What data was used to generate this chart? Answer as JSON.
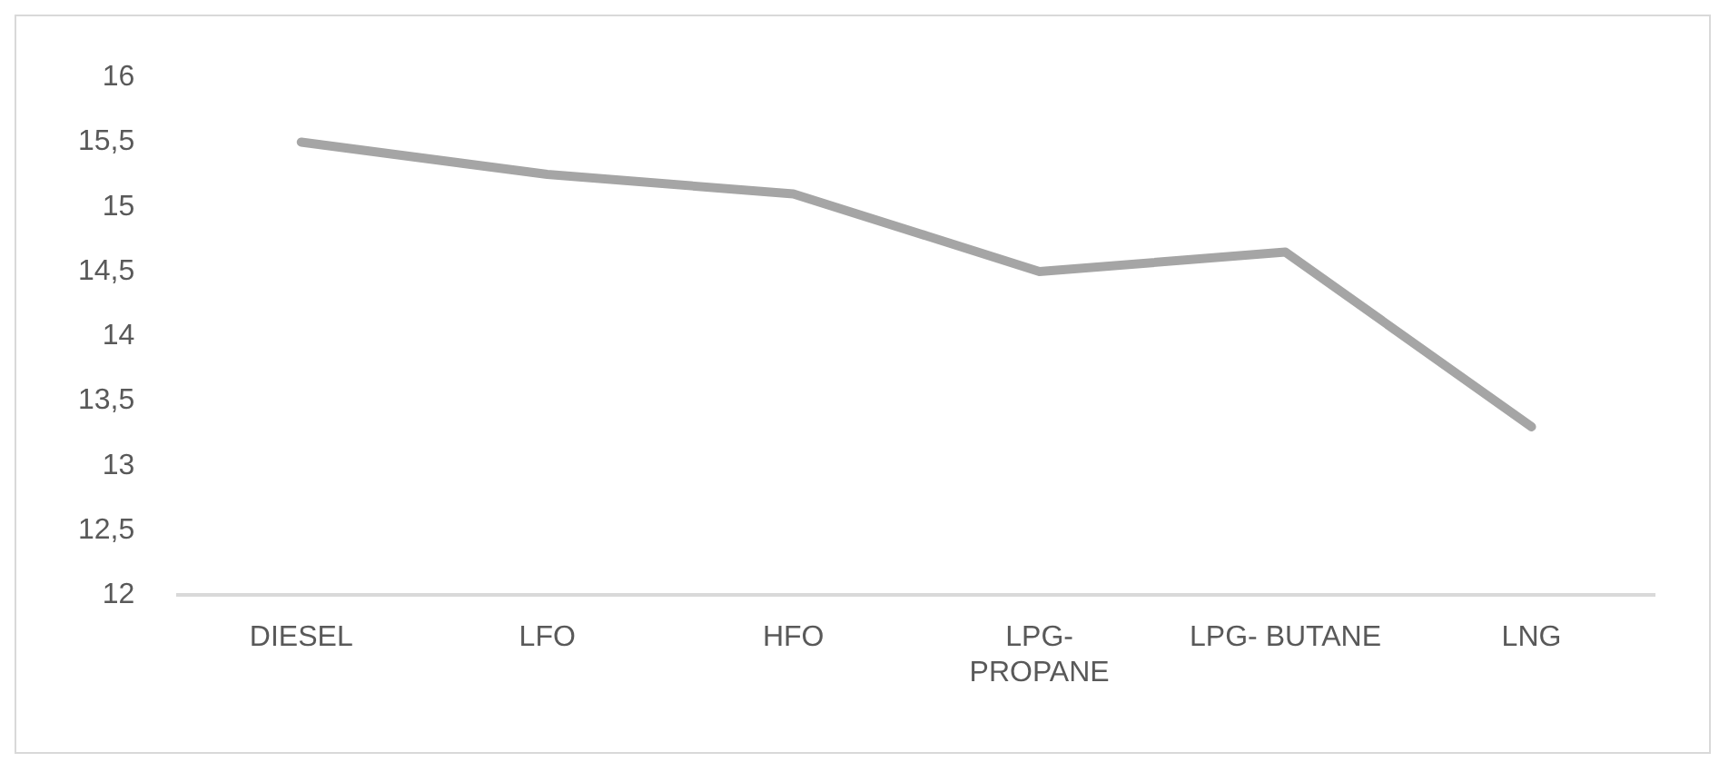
{
  "chart_data": {
    "type": "line",
    "categories": [
      "DIESEL",
      "LFO",
      "HFO",
      "LPG-PROPANE",
      "LPG- BUTANE",
      "LNG"
    ],
    "series": [
      {
        "color": "#a5a5a5",
        "values": [
          15.5,
          15.25,
          15.1,
          14.5,
          14.65,
          13.3
        ]
      }
    ],
    "ylim": [
      12,
      16
    ],
    "yticks": [
      12,
      {
        "value": 12.5,
        "label": "12,5"
      },
      13,
      {
        "value": 13.5,
        "label": "13,5"
      },
      14,
      {
        "value": 14.5,
        "label": "14,5"
      },
      15,
      {
        "value": 15.5,
        "label": "15,5"
      },
      16
    ],
    "grid": false,
    "legend": false,
    "marker": "none"
  }
}
